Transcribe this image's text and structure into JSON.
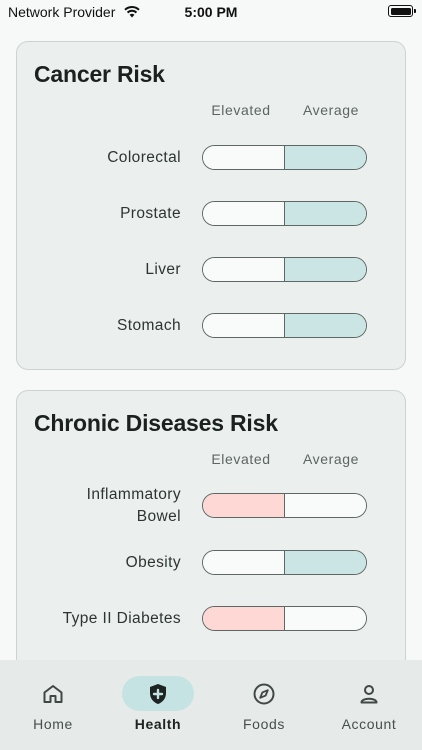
{
  "status_bar": {
    "carrier": "Network Provider",
    "time": "5:00 PM"
  },
  "cancer_card": {
    "title": "Cancer Risk",
    "col_elevated": "Elevated",
    "col_average": "Average",
    "rows": [
      {
        "label": "Colorectal",
        "level": "Average"
      },
      {
        "label": "Prostate",
        "level": "Average"
      },
      {
        "label": "Liver",
        "level": "Average"
      },
      {
        "label": "Stomach",
        "level": "Average"
      }
    ]
  },
  "chronic_card": {
    "title": "Chronic Diseases Risk",
    "col_elevated": "Elevated",
    "col_average": "Average",
    "rows": [
      {
        "label_line1": "Inflammatory",
        "label_line2": "Bowel",
        "level": "Elevated"
      },
      {
        "label": "Obesity",
        "level": "Average"
      },
      {
        "label": "Type II Diabetes",
        "level": "Elevated"
      }
    ]
  },
  "colors": {
    "average": "#cbe5e4",
    "elevated": "#fdd8d5",
    "accent": "#c5e3e2"
  },
  "nav": {
    "items": [
      {
        "label": "Home",
        "icon": "home-icon"
      },
      {
        "label": "Health",
        "icon": "shield-plus-icon",
        "active": true
      },
      {
        "label": "Foods",
        "icon": "compass-icon"
      },
      {
        "label": "Account",
        "icon": "person-icon"
      }
    ]
  }
}
